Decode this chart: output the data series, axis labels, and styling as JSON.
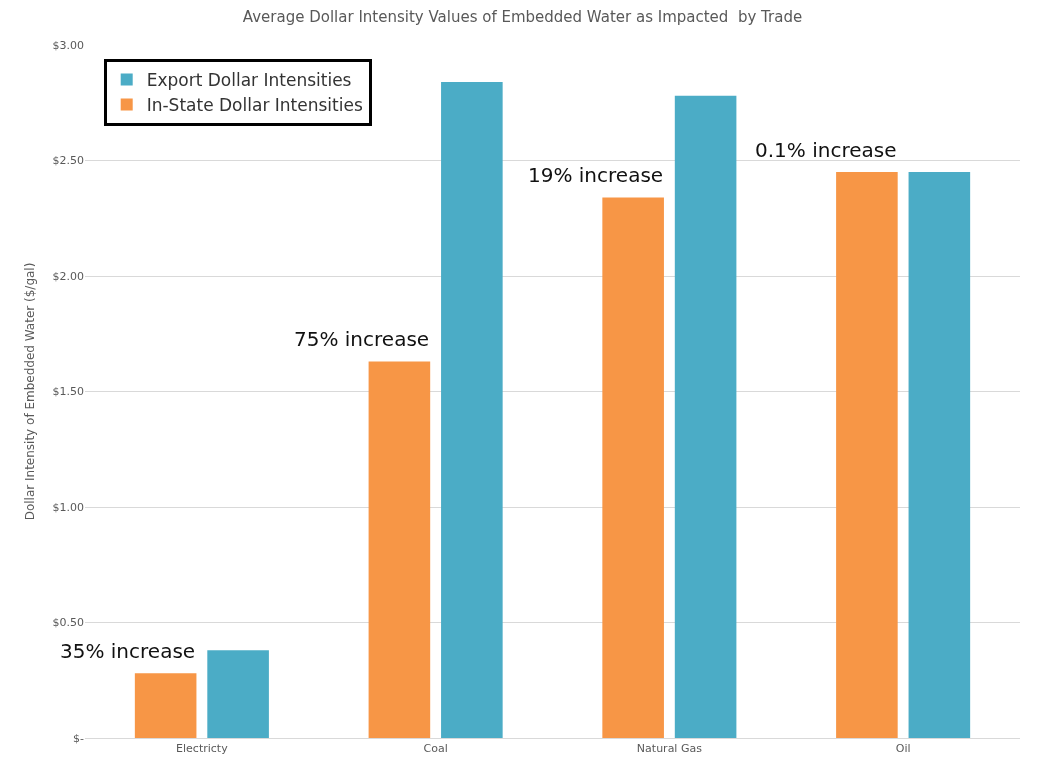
{
  "chart_data": {
    "type": "bar",
    "title": "Average Dollar Intensity Values of Embedded Water as Impacted  by Trade",
    "ylabel": "Dollar Intensity of Embedded Water ($/gal)",
    "categories": [
      "Electricty",
      "Coal",
      "Natural Gas",
      "Oil"
    ],
    "series": [
      {
        "name": "In-State Dollar Intensities",
        "color": "#f79646",
        "values": [
          0.28,
          1.63,
          2.34,
          2.45
        ]
      },
      {
        "name": "Export Dollar Intensities",
        "color": "#4bacc6",
        "values": [
          0.38,
          2.84,
          2.78,
          2.45
        ]
      }
    ],
    "ylim": [
      0,
      3
    ],
    "yticks": [
      {
        "value": 0,
        "label": "$-"
      },
      {
        "value": 0.5,
        "label": "$0.50"
      },
      {
        "value": 1,
        "label": "$1.00"
      },
      {
        "value": 1.5,
        "label": "$1.50"
      },
      {
        "value": 2,
        "label": "$2.00"
      },
      {
        "value": 2.5,
        "label": "$2.50"
      },
      {
        "value": 3,
        "label": "$3.00"
      }
    ],
    "grid": "y",
    "legend": "top left",
    "annotations": [
      "35% increase",
      "75% increase",
      "19% increase",
      "0.1% increase"
    ]
  }
}
